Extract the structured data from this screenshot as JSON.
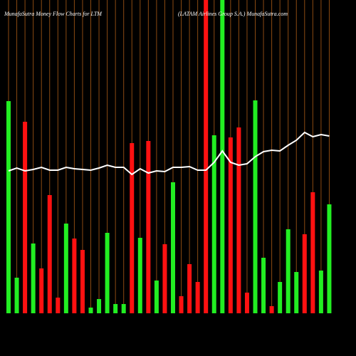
{
  "chart_data": {
    "type": "bar",
    "title": "MunafaSutra  Money Flow  Charts for LTM",
    "subtitle": "(LATAM Airlines Group S.A.) MunafaSutra.com",
    "ylim": [
      0,
      440
    ],
    "grid": true,
    "grid_color": "#8b4a12",
    "values": [
      298,
      50,
      269,
      98,
      63,
      166,
      22,
      126,
      105,
      89,
      8,
      20,
      113,
      13,
      13,
      239,
      106,
      242,
      46,
      97,
      184,
      24,
      69,
      44,
      440,
      250,
      440,
      247,
      261,
      29,
      299,
      78,
      10,
      44,
      118,
      58,
      111,
      170,
      60,
      153
    ],
    "colors": [
      "#22ee22",
      "#22ee22",
      "#ff1111",
      "#22ee22",
      "#ff1111",
      "#ff1111",
      "#ff1111",
      "#22ee22",
      "#ff1111",
      "#ff1111",
      "#22ee22",
      "#22ee22",
      "#22ee22",
      "#22ee22",
      "#22ee22",
      "#ff1111",
      "#22ee22",
      "#ff1111",
      "#22ee22",
      "#ff1111",
      "#22ee22",
      "#ff1111",
      "#ff1111",
      "#ff1111",
      "#ff1111",
      "#22ee22",
      "#22ee22",
      "#ff1111",
      "#ff1111",
      "#ff1111",
      "#22ee22",
      "#22ee22",
      "#ff1111",
      "#22ee22",
      "#22ee22",
      "#22ee22",
      "#ff1111",
      "#ff1111",
      "#22ee22",
      "#22ee22"
    ],
    "line": {
      "color": "#ffffff",
      "values": [
        200,
        204,
        200,
        202,
        205,
        201,
        201,
        205,
        203,
        202,
        201,
        204,
        208,
        205,
        205,
        195,
        203,
        197,
        200,
        199,
        205,
        205,
        206,
        201,
        201,
        212,
        228,
        212,
        208,
        210,
        220,
        227,
        229,
        228,
        236,
        243,
        254,
        248,
        251,
        249
      ]
    }
  }
}
